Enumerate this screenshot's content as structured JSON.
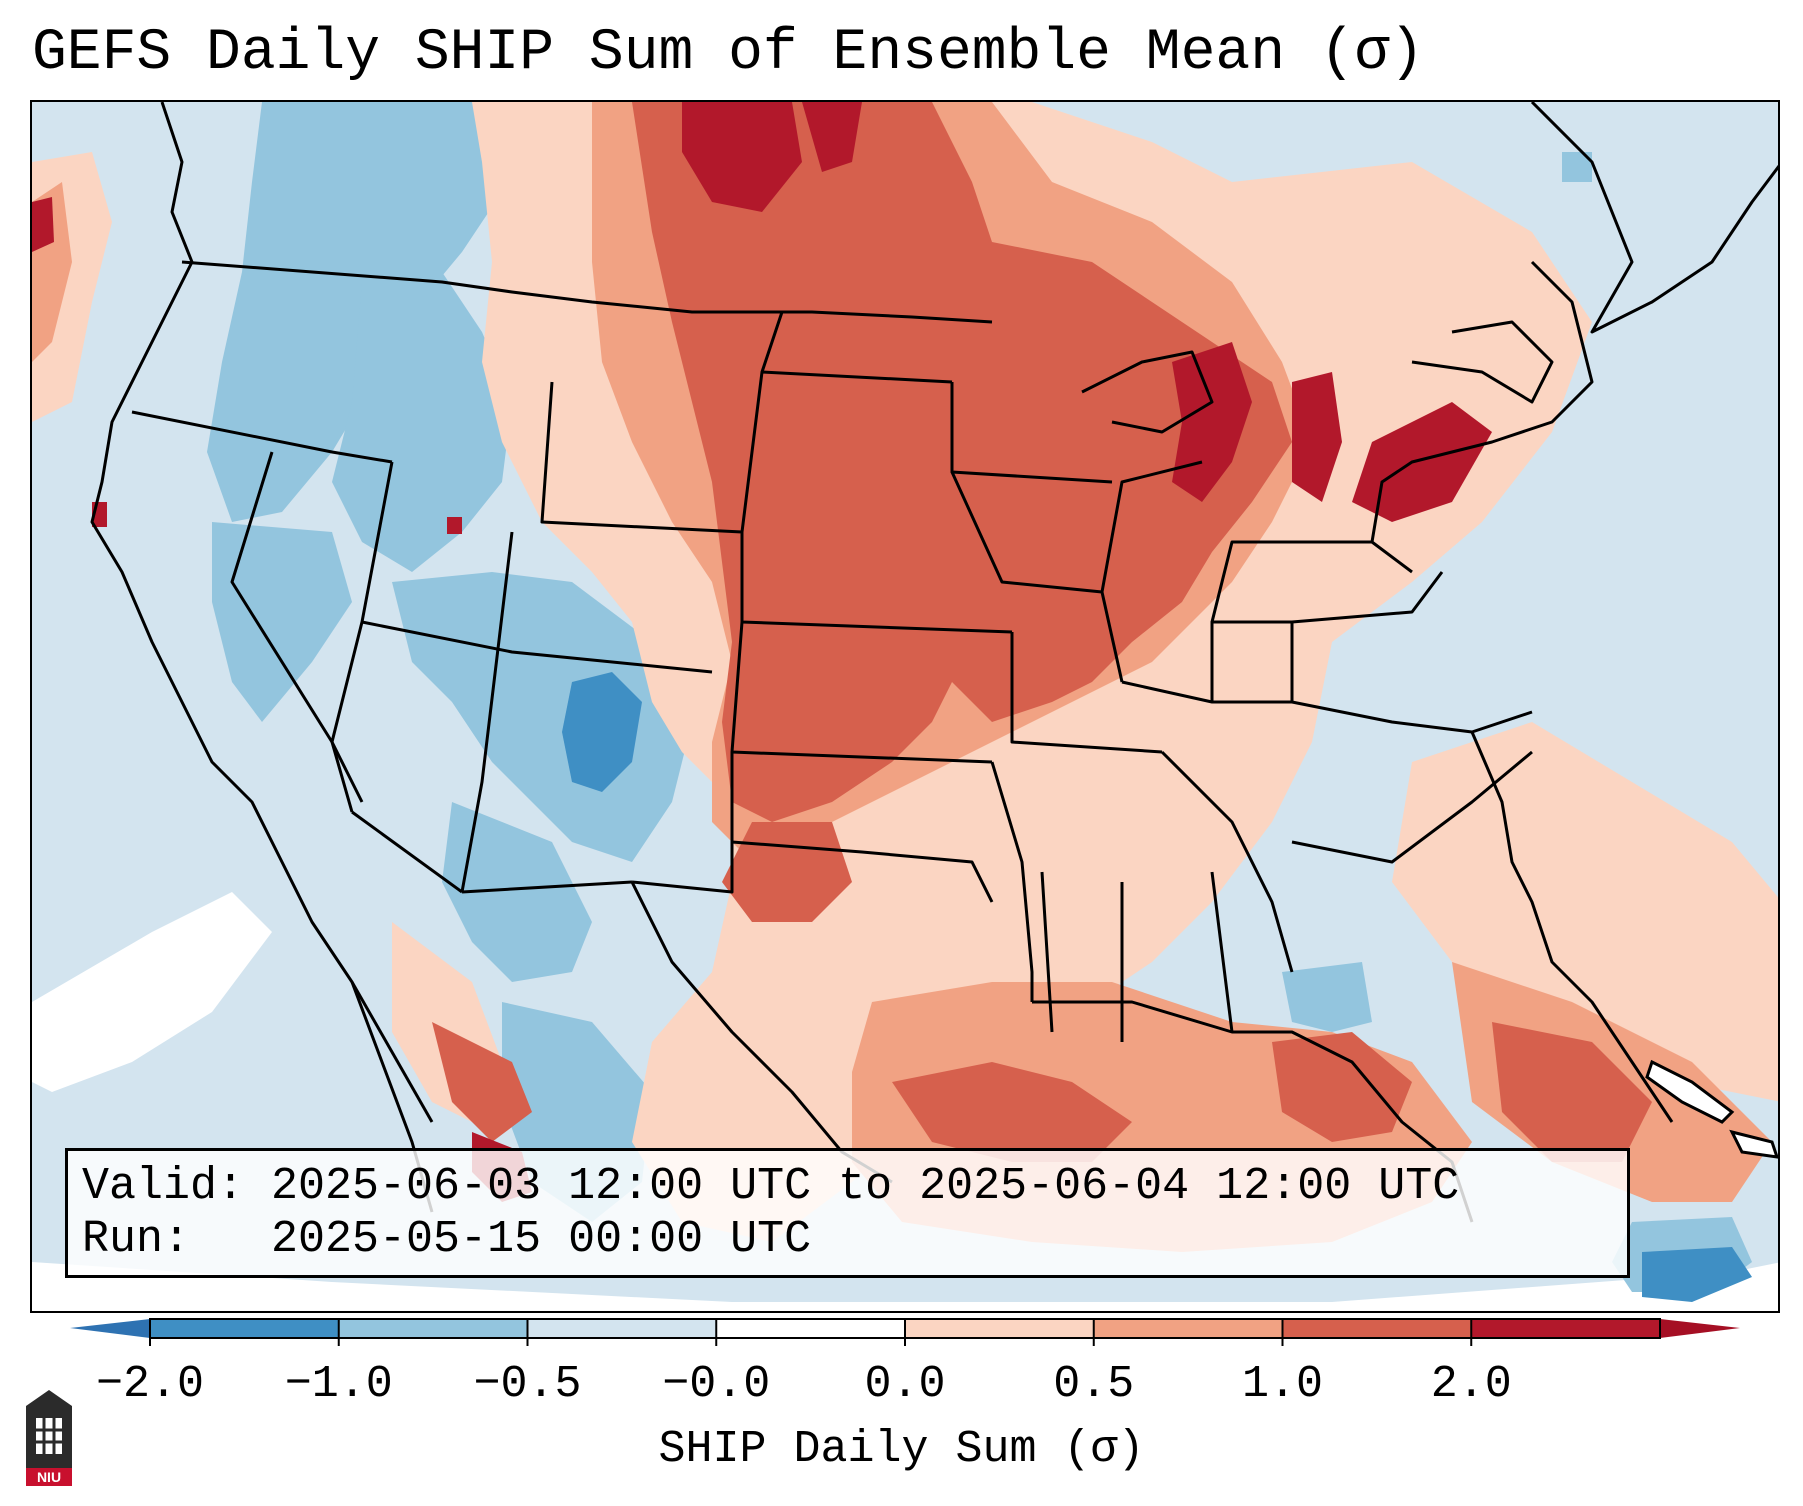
{
  "title": "GEFS Daily SHIP Sum of Ensemble Mean (σ)",
  "info": {
    "valid_line": "Valid: 2025-06-03 12:00 UTC to 2025-06-04 12:00 UTC",
    "run_line": "Run:   2025-05-15 00:00 UTC"
  },
  "colorbar": {
    "label": "SHIP Daily Sum (σ)",
    "ticks": [
      "−2.0",
      "−1.0",
      "−0.5",
      "−0.0",
      "0.0",
      "0.5",
      "1.0",
      "2.0"
    ],
    "bin_colors": [
      "#3f8fc4",
      "#93c5de",
      "#d3e4ef",
      "#ffffff",
      "#fbd5c2",
      "#f1a283",
      "#d6604d",
      "#b2182b"
    ],
    "extend_low_color": "#2e72b2",
    "extend_high_color": "#a50f24"
  },
  "map": {
    "background_color": "#d3e4ef",
    "boundary_color": "#000000",
    "icon": "map-of-conus-ship-anomaly"
  },
  "logo": {
    "text": "NIU",
    "icon": "niu-logo-icon"
  }
}
